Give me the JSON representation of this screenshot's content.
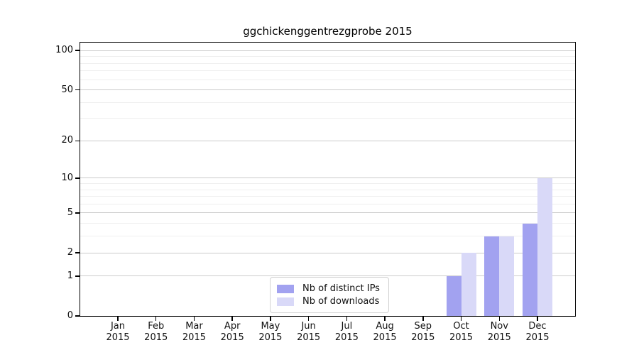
{
  "chart_data": {
    "type": "bar",
    "title": "ggchickenggentrezgprobe 2015",
    "categories": [
      "Jan",
      "Feb",
      "Mar",
      "Apr",
      "May",
      "Jun",
      "Jul",
      "Aug",
      "Sep",
      "Oct",
      "Nov",
      "Dec"
    ],
    "category_sublabel": "2015",
    "series": [
      {
        "name": "Nb of distinct IPs",
        "color": "#a2a2f0",
        "values": [
          0,
          0,
          0,
          0,
          0,
          0,
          0,
          0,
          0,
          1,
          3,
          4
        ]
      },
      {
        "name": "Nb of downloads",
        "color": "#d9d9f8",
        "values": [
          0,
          0,
          0,
          0,
          0,
          0,
          0,
          0,
          0,
          2,
          3,
          10
        ]
      }
    ],
    "yscale": "log1p",
    "ylim": [
      0,
      100
    ],
    "y_major_ticks": [
      0,
      1,
      2,
      5,
      10,
      20,
      50,
      100
    ],
    "y_minor_gridlines": [
      3,
      4,
      6,
      7,
      8,
      9,
      30,
      40,
      60,
      70,
      80,
      90
    ],
    "grid": true,
    "legend_position": "bottom-center",
    "colors": {
      "major_grid": "#cbcbcb",
      "minor_grid": "#efefef",
      "axis": "#000000",
      "background": "#ffffff"
    }
  },
  "legend": {
    "items": [
      {
        "label": "Nb of distinct IPs",
        "color": "#a2a2f0"
      },
      {
        "label": "Nb of downloads",
        "color": "#d9d9f8"
      }
    ]
  }
}
